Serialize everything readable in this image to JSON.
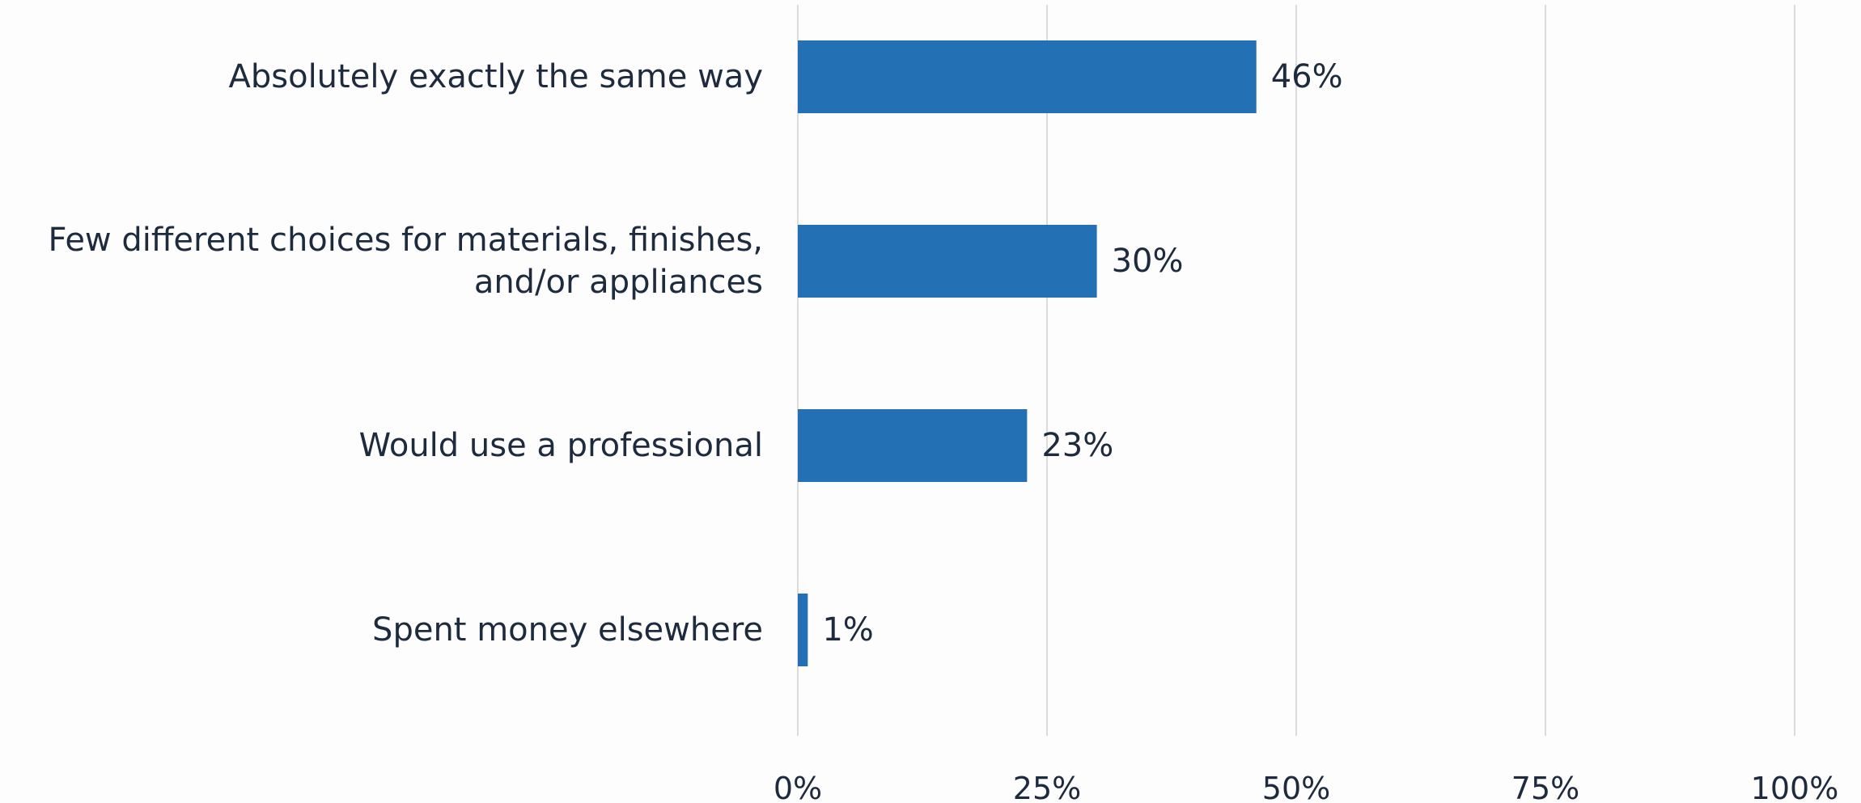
{
  "chart_data": {
    "type": "bar",
    "orientation": "horizontal",
    "categories": [
      [
        "Absolutely exactly the same way"
      ],
      [
        "Few different choices for materials, finishes,",
        "and/or appliances"
      ],
      [
        "Would use a professional"
      ],
      [
        "Spent money elsewhere"
      ]
    ],
    "values": [
      46,
      30,
      23,
      1
    ],
    "data_labels": [
      "46%",
      "30%",
      "23%",
      "1%"
    ],
    "xlim": [
      0,
      100
    ],
    "xticks": [
      0,
      25,
      50,
      75,
      100
    ],
    "xtick_labels": [
      "0%",
      "25%",
      "50%",
      "75%",
      "100%"
    ],
    "grid": "vertical",
    "legend": "none",
    "bar_color": "#2470b5",
    "text_color": "#1e2a3d",
    "grid_color": "#dcdcdc"
  }
}
